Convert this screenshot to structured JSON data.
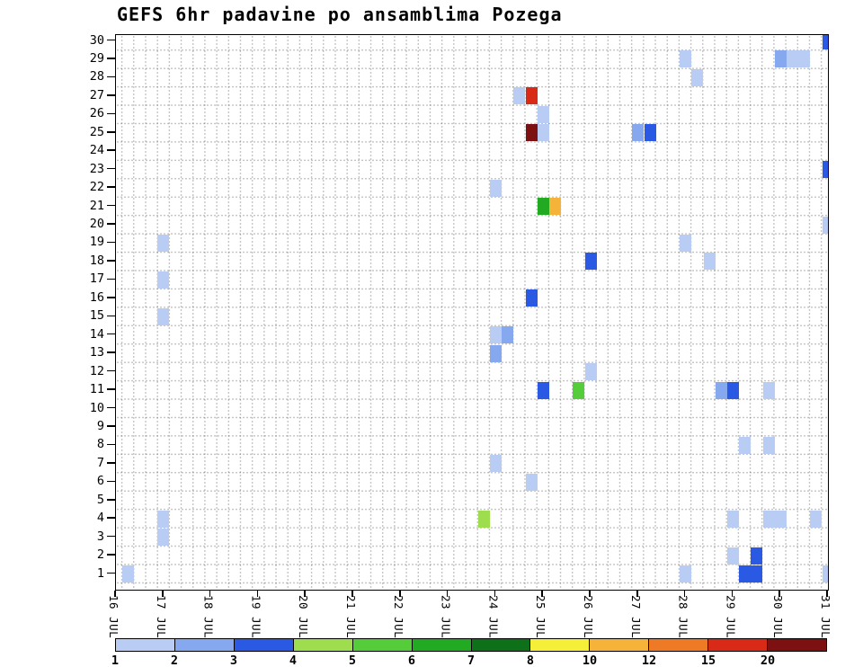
{
  "title": "GEFS 6hr padavine po ansamblima Pozega",
  "chart_data": {
    "type": "heatmap",
    "title": "GEFS 6hr padavine po ansamblima Pozega",
    "x_axis": {
      "tick_labels": [
        "16 JUL",
        "17 JUL",
        "18 JUL",
        "19 JUL",
        "20 JUL",
        "21 JUL",
        "22 JUL",
        "23 JUL",
        "24 JUL",
        "25 JUL",
        "26 JUL",
        "27 JUL",
        "28 JUL",
        "29 JUL",
        "30 JUL",
        "31 JUL"
      ],
      "steps_per_day": 4,
      "t_unit": "6-hour steps after 16 JUL 00Z"
    },
    "y_axis": {
      "meaning": "ensemble member",
      "tick_labels": [
        "30",
        "29",
        "28",
        "27",
        "26",
        "25",
        "24",
        "23",
        "22",
        "21",
        "20",
        "19",
        "18",
        "17",
        "16",
        "15",
        "14",
        "13",
        "12",
        "11",
        "10",
        "9",
        "8",
        "7",
        "6",
        "5",
        "4",
        "3",
        "2",
        "1"
      ]
    },
    "colorbar": {
      "labels": [
        "1",
        "2",
        "3",
        "4",
        "5",
        "6",
        "7",
        "8",
        "10",
        "12",
        "15",
        "20"
      ],
      "colors": [
        "#b9ccf4",
        "#85a8ef",
        "#2a5ae4",
        "#9edd4e",
        "#55cc3a",
        "#22aa22",
        "#0e7018",
        "#f5ef3a",
        "#f5b33a",
        "#ee7a26",
        "#d92a18",
        "#7d1010"
      ]
    },
    "cells": [
      {
        "member": 30,
        "t": 60,
        "bin": 2
      },
      {
        "member": 29,
        "t": 48,
        "bin": 0
      },
      {
        "member": 29,
        "t": 56,
        "bin": 1
      },
      {
        "member": 29,
        "t": 57,
        "bin": 0
      },
      {
        "member": 29,
        "t": 58,
        "bin": 0
      },
      {
        "member": 28,
        "t": 49,
        "bin": 0
      },
      {
        "member": 27,
        "t": 34,
        "bin": 0
      },
      {
        "member": 27,
        "t": 35,
        "bin": 10
      },
      {
        "member": 26,
        "t": 36,
        "bin": 0
      },
      {
        "member": 25,
        "t": 35,
        "bin": 11
      },
      {
        "member": 25,
        "t": 36,
        "bin": 0
      },
      {
        "member": 25,
        "t": 44,
        "bin": 1
      },
      {
        "member": 25,
        "t": 45,
        "bin": 2
      },
      {
        "member": 23,
        "t": 60,
        "bin": 2
      },
      {
        "member": 22,
        "t": 32,
        "bin": 0
      },
      {
        "member": 21,
        "t": 36,
        "bin": 5
      },
      {
        "member": 21,
        "t": 37,
        "bin": 8
      },
      {
        "member": 20,
        "t": 60,
        "bin": 0
      },
      {
        "member": 19,
        "t": 4,
        "bin": 0
      },
      {
        "member": 19,
        "t": 48,
        "bin": 0
      },
      {
        "member": 18,
        "t": 40,
        "bin": 2
      },
      {
        "member": 18,
        "t": 50,
        "bin": 0
      },
      {
        "member": 17,
        "t": 4,
        "bin": 0
      },
      {
        "member": 16,
        "t": 35,
        "bin": 2
      },
      {
        "member": 15,
        "t": 4,
        "bin": 0
      },
      {
        "member": 14,
        "t": 32,
        "bin": 0
      },
      {
        "member": 14,
        "t": 33,
        "bin": 1
      },
      {
        "member": 13,
        "t": 32,
        "bin": 1
      },
      {
        "member": 12,
        "t": 40,
        "bin": 0
      },
      {
        "member": 11,
        "t": 36,
        "bin": 2
      },
      {
        "member": 11,
        "t": 39,
        "bin": 4
      },
      {
        "member": 11,
        "t": 51,
        "bin": 1
      },
      {
        "member": 11,
        "t": 52,
        "bin": 2
      },
      {
        "member": 11,
        "t": 55,
        "bin": 0
      },
      {
        "member": 8,
        "t": 53,
        "bin": 0
      },
      {
        "member": 8,
        "t": 55,
        "bin": 0
      },
      {
        "member": 7,
        "t": 32,
        "bin": 0
      },
      {
        "member": 6,
        "t": 35,
        "bin": 0
      },
      {
        "member": 4,
        "t": 4,
        "bin": 0
      },
      {
        "member": 4,
        "t": 31,
        "bin": 3
      },
      {
        "member": 4,
        "t": 52,
        "bin": 0
      },
      {
        "member": 4,
        "t": 55,
        "bin": 0
      },
      {
        "member": 4,
        "t": 56,
        "bin": 0
      },
      {
        "member": 4,
        "t": 59,
        "bin": 0
      },
      {
        "member": 3,
        "t": 4,
        "bin": 0
      },
      {
        "member": 2,
        "t": 52,
        "bin": 0
      },
      {
        "member": 2,
        "t": 54,
        "bin": 2
      },
      {
        "member": 1,
        "t": 1,
        "bin": 0
      },
      {
        "member": 1,
        "t": 48,
        "bin": 0
      },
      {
        "member": 1,
        "t": 53,
        "bin": 2
      },
      {
        "member": 1,
        "t": 54,
        "bin": 2
      },
      {
        "member": 1,
        "t": 60,
        "bin": 0
      }
    ]
  }
}
